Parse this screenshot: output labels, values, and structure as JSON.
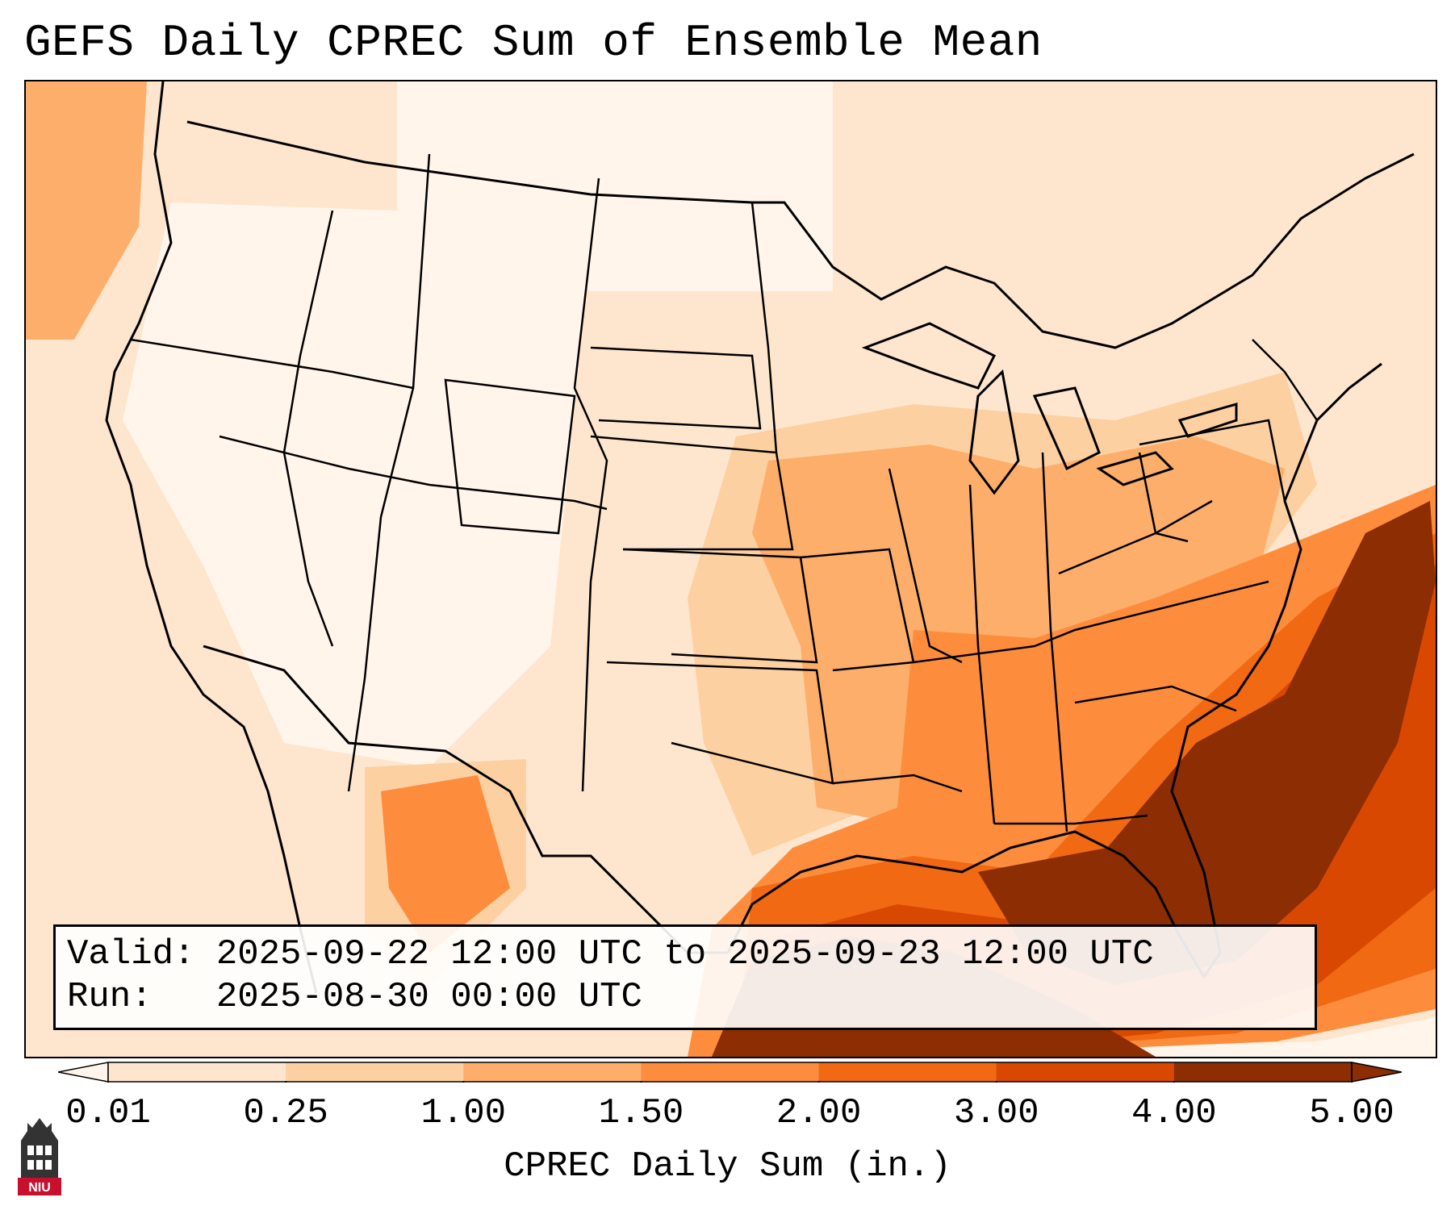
{
  "title": "GEFS Daily CPREC Sum of Ensemble Mean",
  "info": {
    "valid_label": "Valid:",
    "valid_value": "2025-09-22 12:00 UTC to 2025-09-23 12:00 UTC",
    "run_label": "Run:",
    "run_value": "2025-08-30 00:00 UTC"
  },
  "colorbar": {
    "title": "CPREC Daily Sum (in.)",
    "ticks": [
      "0.01",
      "0.25",
      "1.00",
      "1.50",
      "2.00",
      "3.00",
      "4.00",
      "5.00"
    ],
    "colors": [
      "#fff5eb",
      "#fee6ce",
      "#fdd0a2",
      "#fdae6b",
      "#fd8d3c",
      "#f16913",
      "#d94801",
      "#8c2d04"
    ],
    "extend": "both"
  },
  "map": {
    "region": "Contiguous United States",
    "field": "precipitation shading",
    "max_region": "Southeast coast / Gulf of Mexico"
  },
  "logo": {
    "text": "NIU",
    "colors": {
      "banner": "#c8102e",
      "tower": "#333333"
    }
  }
}
